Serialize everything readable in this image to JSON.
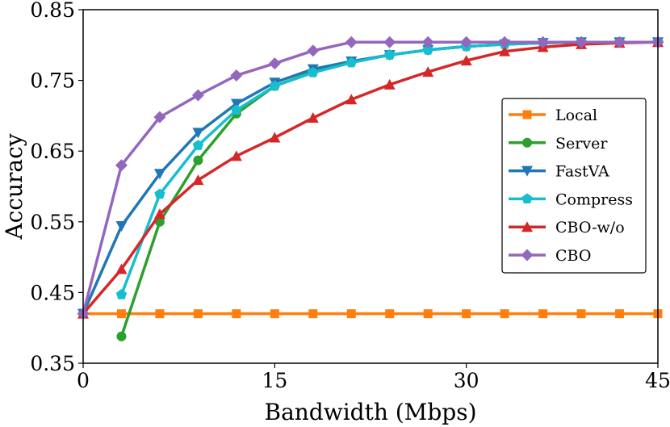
{
  "chart_data": {
    "type": "line",
    "title": "",
    "xlabel": "Bandwidth (Mbps)",
    "ylabel": "Accuracy",
    "xlim": [
      0,
      45
    ],
    "ylim": [
      0.35,
      0.85
    ],
    "xticks": [
      "0",
      "15",
      "30",
      "45"
    ],
    "yticks": [
      "0.35",
      "0.45",
      "0.55",
      "0.65",
      "0.75",
      "0.85"
    ],
    "legend_position": "center-right",
    "grid": false,
    "series": [
      {
        "name": "Local",
        "color": "#ff7f0e",
        "marker": "square",
        "x": [
          0,
          3,
          6,
          9,
          12,
          15,
          18,
          21,
          24,
          27,
          30,
          33,
          36,
          39,
          42,
          45
        ],
        "y": [
          0.42,
          0.42,
          0.42,
          0.42,
          0.42,
          0.42,
          0.42,
          0.42,
          0.42,
          0.42,
          0.42,
          0.42,
          0.42,
          0.42,
          0.42,
          0.42
        ]
      },
      {
        "name": "Server",
        "color": "#2ca02c",
        "marker": "circle",
        "x": [
          3,
          6,
          9,
          12,
          15,
          18,
          21,
          24,
          27,
          30,
          33,
          36,
          39,
          42,
          45
        ],
        "y": [
          0.388,
          0.55,
          0.637,
          0.703,
          0.742,
          0.762,
          0.776,
          0.786,
          0.793,
          0.798,
          0.801,
          0.803,
          0.804,
          0.804,
          0.804
        ]
      },
      {
        "name": "FastVA",
        "color": "#1f77b4",
        "marker": "triangle-down",
        "x": [
          0,
          3,
          6,
          9,
          12,
          15,
          18,
          21,
          24,
          27,
          30,
          33,
          36,
          39,
          42,
          45
        ],
        "y": [
          0.42,
          0.544,
          0.618,
          0.676,
          0.717,
          0.747,
          0.766,
          0.777,
          0.786,
          0.793,
          0.798,
          0.801,
          0.803,
          0.804,
          0.804,
          0.804
        ]
      },
      {
        "name": "Compress",
        "color": "#17becf",
        "marker": "pentagon",
        "x": [
          3,
          6,
          9,
          12,
          15,
          18,
          21,
          24,
          27,
          30,
          33,
          36,
          39,
          42,
          45
        ],
        "y": [
          0.447,
          0.589,
          0.658,
          0.708,
          0.742,
          0.761,
          0.775,
          0.786,
          0.793,
          0.798,
          0.801,
          0.803,
          0.804,
          0.804,
          0.804
        ]
      },
      {
        "name": "CBO-w/o",
        "color": "#d62728",
        "marker": "triangle-up",
        "x": [
          0,
          3,
          6,
          9,
          12,
          15,
          18,
          21,
          24,
          27,
          30,
          33,
          36,
          39,
          42,
          45
        ],
        "y": [
          0.42,
          0.483,
          0.561,
          0.609,
          0.643,
          0.669,
          0.697,
          0.723,
          0.744,
          0.762,
          0.778,
          0.791,
          0.797,
          0.801,
          0.803,
          0.804
        ]
      },
      {
        "name": "CBO",
        "color": "#9467bd",
        "marker": "diamond",
        "x": [
          0,
          3,
          6,
          9,
          12,
          15,
          18,
          21,
          24,
          27,
          30,
          33,
          36,
          39,
          42,
          45
        ],
        "y": [
          0.42,
          0.63,
          0.698,
          0.729,
          0.757,
          0.774,
          0.792,
          0.804,
          0.804,
          0.804,
          0.804,
          0.804,
          0.804,
          0.804,
          0.804,
          0.804
        ]
      }
    ]
  }
}
